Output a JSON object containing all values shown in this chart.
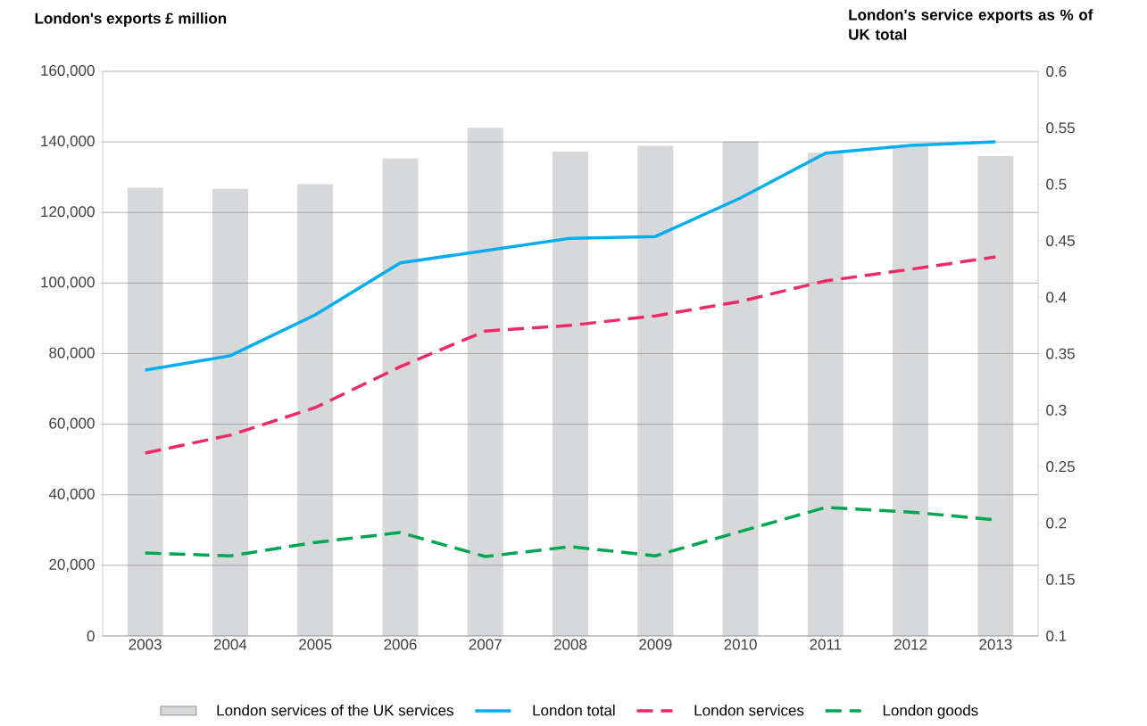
{
  "chart_data": {
    "type": "line",
    "xlabel": null,
    "ylabel": "London's exports £ million",
    "y2label": "London's service exports as % of UK total",
    "categories": [
      "2003",
      "2004",
      "2005",
      "2006",
      "2007",
      "2008",
      "2009",
      "2010",
      "2011",
      "2012",
      "2013"
    ],
    "series": [
      {
        "name": "London services of the UK services",
        "type": "bar",
        "axis": "y2",
        "color": "#d7d8da",
        "values": [
          0.497,
          0.496,
          0.5,
          0.523,
          0.55,
          0.529,
          0.534,
          0.538,
          0.528,
          0.534,
          0.525
        ]
      },
      {
        "name": "London total",
        "line_style": "solid",
        "color": "#00aeef",
        "values": [
          75300,
          79400,
          91000,
          105700,
          109200,
          112700,
          113200,
          124100,
          136800,
          139000,
          140000
        ]
      },
      {
        "name": "London services",
        "line_style": "dashed",
        "color": "#ee2a66",
        "values": [
          51800,
          56900,
          64700,
          76300,
          86400,
          88000,
          90700,
          94800,
          100600,
          103900,
          107400
        ]
      },
      {
        "name": "London goods",
        "line_style": "dashed",
        "color": "#00a651",
        "values": [
          23500,
          22700,
          26500,
          29300,
          22500,
          25300,
          22700,
          29600,
          36400,
          35100,
          32900
        ]
      }
    ],
    "ylim": [
      0,
      160000
    ],
    "yticks": [
      0,
      {
        "value": 20000,
        "label": "20,000"
      },
      {
        "value": 40000,
        "label": "40,000"
      },
      {
        "value": 60000,
        "label": "60,000"
      },
      {
        "value": 80000,
        "label": "80,000"
      },
      {
        "value": 100000,
        "label": "100,000"
      },
      {
        "value": 120000,
        "label": "120,000"
      },
      {
        "value": 140000,
        "label": "140,000"
      },
      {
        "value": 160000,
        "label": "160,000"
      }
    ],
    "y2lim": [
      0.1,
      0.6
    ],
    "y2ticks": [
      0.1,
      0.15,
      0.2,
      0.25,
      0.3,
      0.35,
      0.4,
      0.45,
      0.5,
      0.55,
      0.6
    ],
    "grid": "y",
    "legend": "bottom"
  }
}
